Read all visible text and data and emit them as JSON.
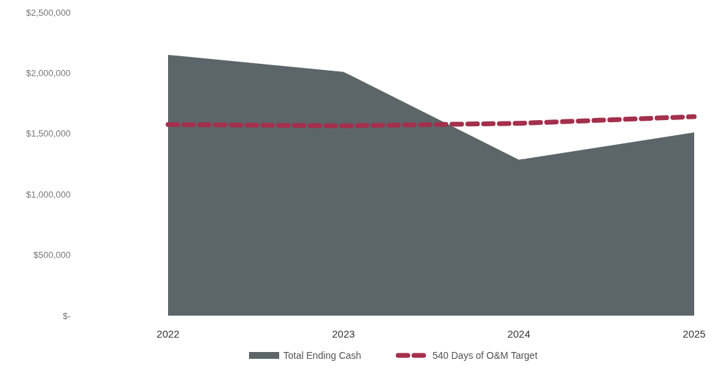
{
  "chart_data": {
    "type": "area",
    "categories": [
      "2022",
      "2023",
      "2024",
      "2025"
    ],
    "series": [
      {
        "name": "Total Ending Cash",
        "color": "#5c6669",
        "values": [
          2150000,
          2010000,
          1285000,
          1510000
        ]
      },
      {
        "name": "540 Days of O&M Target",
        "type": "line",
        "color": "#a3304c",
        "line_style": "dashed",
        "values": [
          1575000,
          1565000,
          1585000,
          1640000
        ]
      }
    ],
    "ylim": [
      0,
      2500000
    ],
    "yticks": [
      {
        "value": 0,
        "label": "$-"
      },
      {
        "value": 500000,
        "label": "$500,000"
      },
      {
        "value": 1000000,
        "label": "$1,000,000"
      },
      {
        "value": 1500000,
        "label": "$1,500,000"
      },
      {
        "value": 2000000,
        "label": "$2,000,000"
      },
      {
        "value": 2500000,
        "label": "$2,500,000"
      }
    ],
    "legend": "bottom"
  }
}
